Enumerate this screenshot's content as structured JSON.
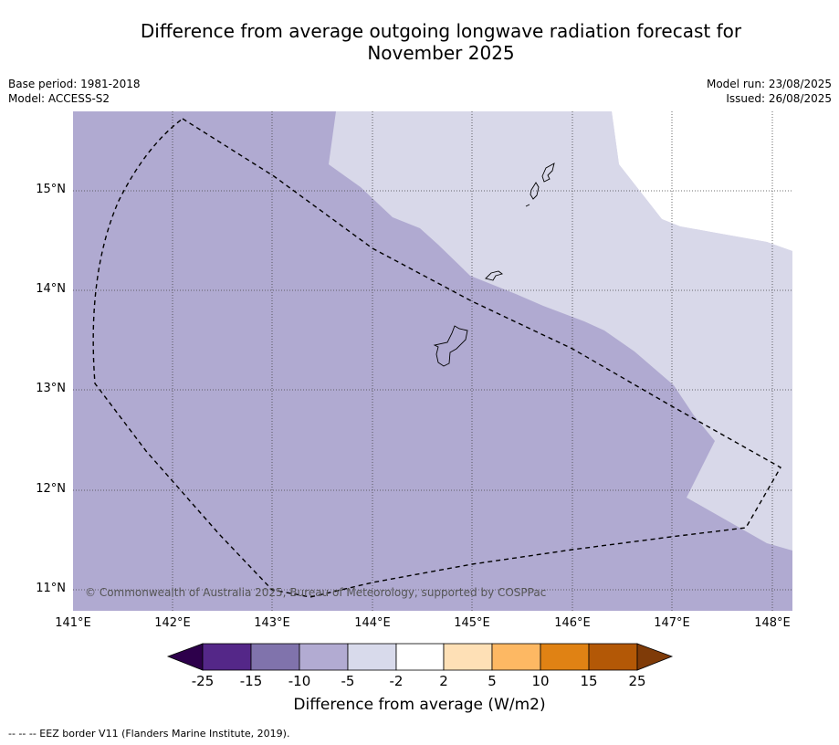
{
  "header": {
    "title_line1": "Difference from average outgoing longwave radiation forecast for",
    "title_line2": "November 2025",
    "base_period": "Base period: 1981-2018",
    "model": "Model: ACCESS-S2",
    "model_run": "Model run: 23/08/2025",
    "issued": "Issued: 26/08/2025"
  },
  "map": {
    "lon_labels": [
      "141°E",
      "142°E",
      "143°E",
      "144°E",
      "145°E",
      "146°E",
      "147°E",
      "148°E"
    ],
    "lat_labels": [
      "15°N",
      "14°N",
      "13°N",
      "12°N",
      "11°N"
    ],
    "copyright": "© Commonwealth of Australia 2025, Bureau of Meteorology, supported by COSPPac",
    "colors": {
      "band_-10_-5": "#b0aad1",
      "band_-5_-2": "#d8d8e9",
      "land_outline": "#000000",
      "eez_line": "#000000"
    }
  },
  "colorbar": {
    "ticks": [
      "-25",
      "-15",
      "-10",
      "-5",
      "-2",
      "2",
      "5",
      "10",
      "15",
      "25"
    ],
    "colors": [
      "#2d004b",
      "#542788",
      "#8073ac",
      "#b2abd2",
      "#d8daeb",
      "#ffffff",
      "#fee0b6",
      "#fdb863",
      "#e08214",
      "#b35806",
      "#7f3b08"
    ],
    "label": "Difference from average (W/m2)"
  },
  "footnote": "--  --  -- EEZ border V11 (Flanders Marine Institute, 2019)."
}
